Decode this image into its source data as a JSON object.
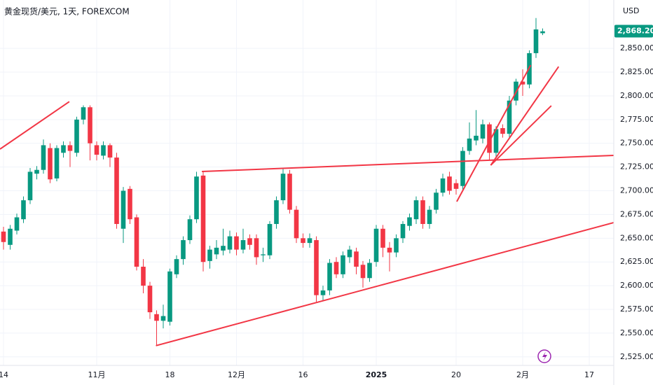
{
  "chart_data": {
    "type": "candlestick",
    "title": "黄金现货/美元, 1天, FOREXCOM",
    "y_axis_label": "USD",
    "categories": [
      "14",
      null,
      null,
      null,
      null,
      null,
      null,
      null,
      null,
      null,
      null,
      null,
      null,
      null,
      "11月",
      null,
      null,
      null,
      null,
      null,
      null,
      null,
      null,
      null,
      null,
      "18",
      null,
      null,
      null,
      null,
      null,
      null,
      null,
      null,
      null,
      "12月",
      null,
      null,
      null,
      null,
      null,
      null,
      null,
      null,
      null,
      "16",
      null,
      null,
      null,
      null,
      null,
      null,
      null,
      null,
      null,
      null,
      "2025",
      null,
      null,
      null,
      null,
      null,
      null,
      null,
      null,
      null,
      null,
      null,
      "20",
      null,
      null,
      null,
      null,
      null,
      null,
      null,
      null,
      null,
      "2月",
      null,
      null,
      null,
      null,
      null,
      null,
      null,
      null,
      null,
      "17"
    ],
    "open": [
      2657,
      2643,
      2658,
      2670,
      2690,
      2718,
      2722,
      2745,
      2713,
      2740,
      2748,
      2740,
      2775,
      2788,
      2748,
      2737,
      2748,
      2735,
      2660,
      2702,
      2672,
      2620,
      2600,
      2570,
      2563,
      2562,
      2612,
      2628,
      2648,
      2670,
      2716,
      2626,
      2633,
      2637,
      2638,
      2652,
      2638,
      2650,
      2650,
      2632,
      2632,
      2665,
      2690,
      2718,
      2680,
      2650,
      2645,
      2648,
      2590,
      2595,
      2625,
      2612,
      2630,
      2636,
      2622,
      2608,
      2625,
      2660,
      2640,
      2635,
      2650,
      2663,
      2670,
      2690,
      2665,
      2680,
      2698,
      2715,
      2708,
      2705,
      2742,
      2753,
      2755,
      2770,
      2740,
      2766,
      2760,
      2795,
      2815,
      2812,
      2845,
      2866,
      null,
      null,
      null,
      null,
      null,
      null,
      null
    ],
    "high": [
      2662,
      2664,
      2676,
      2694,
      2724,
      2726,
      2754,
      2750,
      2748,
      2752,
      2752,
      2778,
      2790,
      2790,
      2752,
      2752,
      2750,
      2740,
      2704,
      2705,
      2675,
      2628,
      2604,
      2574,
      2580,
      2618,
      2632,
      2652,
      2674,
      2720,
      2720,
      2642,
      2648,
      2660,
      2658,
      2656,
      2660,
      2654,
      2654,
      2640,
      2668,
      2694,
      2724,
      2722,
      2684,
      2655,
      2655,
      2652,
      2600,
      2628,
      2630,
      2636,
      2642,
      2640,
      2626,
      2628,
      2664,
      2664,
      2646,
      2654,
      2668,
      2676,
      2694,
      2694,
      2684,
      2702,
      2718,
      2720,
      2712,
      2746,
      2772,
      2785,
      2775,
      2772,
      2768,
      2770,
      2800,
      2818,
      2828,
      2848,
      2882,
      2871,
      null,
      null,
      null,
      null,
      null,
      null,
      null
    ],
    "low": [
      2638,
      2638,
      2654,
      2666,
      2686,
      2712,
      2718,
      2708,
      2710,
      2735,
      2725,
      2736,
      2770,
      2732,
      2732,
      2733,
      2725,
      2660,
      2645,
      2665,
      2616,
      2592,
      2565,
      2537,
      2555,
      2558,
      2608,
      2622,
      2644,
      2666,
      2615,
      2618,
      2628,
      2632,
      2634,
      2632,
      2634,
      2638,
      2622,
      2625,
      2628,
      2660,
      2686,
      2676,
      2645,
      2640,
      2640,
      2583,
      2584,
      2590,
      2608,
      2608,
      2624,
      2612,
      2598,
      2604,
      2620,
      2630,
      2615,
      2630,
      2645,
      2658,
      2665,
      2660,
      2660,
      2676,
      2694,
      2696,
      2696,
      2700,
      2738,
      2748,
      2750,
      2732,
      2736,
      2756,
      2756,
      2790,
      2800,
      2808,
      2840,
      2864,
      null,
      null,
      null,
      null,
      null,
      null,
      null
    ],
    "close": [
      2646,
      2660,
      2672,
      2690,
      2720,
      2722,
      2748,
      2712,
      2745,
      2748,
      2742,
      2775,
      2788,
      2750,
      2738,
      2748,
      2735,
      2665,
      2700,
      2670,
      2620,
      2600,
      2572,
      2563,
      2568,
      2615,
      2628,
      2648,
      2670,
      2715,
      2625,
      2638,
      2640,
      2642,
      2652,
      2638,
      2648,
      2643,
      2630,
      2633,
      2665,
      2690,
      2718,
      2680,
      2650,
      2645,
      2650,
      2590,
      2595,
      2624,
      2612,
      2632,
      2638,
      2620,
      2608,
      2624,
      2660,
      2640,
      2635,
      2650,
      2665,
      2672,
      2690,
      2665,
      2680,
      2698,
      2713,
      2700,
      2702,
      2742,
      2755,
      2758,
      2770,
      2740,
      2765,
      2760,
      2795,
      2815,
      2812,
      2845,
      2870,
      2868,
      null,
      null,
      null,
      null,
      null,
      null,
      null
    ],
    "up_color": "#089981",
    "down_color": "#f23645",
    "line_color": "#f23645",
    "trendlines": [
      {
        "x": [
          -0.53,
          9.89
        ],
        "y": [
          2743.9,
          2793.9
        ]
      },
      {
        "x": [
          29.8,
          91.7
        ],
        "y": [
          2720.3,
          2737.3
        ]
      },
      {
        "x": [
          22.9,
          91.7
        ],
        "y": [
          2536.8,
          2666.5
        ]
      },
      {
        "x": [
          68.1,
          79.2
        ],
        "y": [
          2688.6,
          2832.3
        ]
      },
      {
        "x": [
          73.2,
          83.4
        ],
        "y": [
          2726.9,
          2830.8
        ]
      },
      {
        "x": [
          73.2,
          82.3
        ],
        "y": [
          2726.9,
          2789.6
        ]
      }
    ],
    "last_price": {
      "value": 2868.2,
      "label": "2,868.20"
    },
    "ylim": [
      2516,
      2901
    ],
    "yticks": [
      {
        "value": 2525,
        "label": "2,525.00"
      },
      {
        "value": 2550,
        "label": "2,550.00"
      },
      {
        "value": 2575,
        "label": "2,575.00"
      },
      {
        "value": 2600,
        "label": "2,600.00"
      },
      {
        "value": 2625,
        "label": "2,625.00"
      },
      {
        "value": 2650,
        "label": "2,650.00"
      },
      {
        "value": 2675,
        "label": "2,675.00"
      },
      {
        "value": 2700,
        "label": "2,700.00"
      },
      {
        "value": 2725,
        "label": "2,725.00"
      },
      {
        "value": 2750,
        "label": "2,750.00"
      },
      {
        "value": 2775,
        "label": "2,775.00"
      },
      {
        "value": 2800,
        "label": "2,800.00"
      },
      {
        "value": 2825,
        "label": "2,825.00"
      },
      {
        "value": 2850,
        "label": "2,850.00"
      }
    ],
    "grid": true
  }
}
